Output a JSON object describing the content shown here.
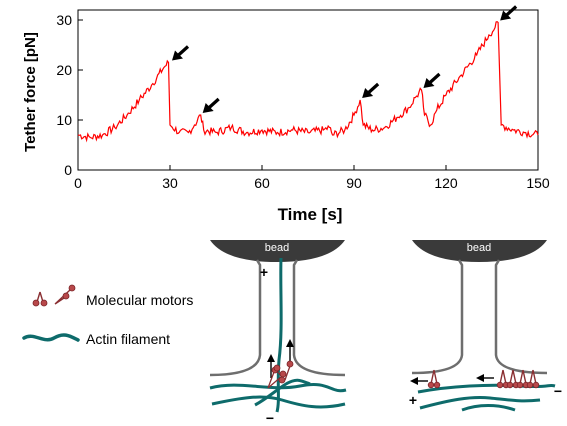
{
  "chart_data": {
    "type": "line",
    "title": "",
    "xlabel": "Time [s]",
    "ylabel": "Tether force [pN]",
    "xlim": [
      0,
      150
    ],
    "ylim": [
      0,
      32
    ],
    "xticks": [
      0,
      30,
      60,
      90,
      120,
      150
    ],
    "yticks": [
      0,
      10,
      20,
      30
    ],
    "x_tick_labels": [
      "0",
      "30",
      "60",
      "90",
      "120",
      "150"
    ],
    "y_tick_labels": [
      "0",
      "10",
      "20",
      "30"
    ],
    "grid": false,
    "line_color": "#ff0000",
    "series": [
      {
        "name": "",
        "points": [
          [
            0,
            7
          ],
          [
            4,
            6.5
          ],
          [
            8,
            7
          ],
          [
            12,
            8.5
          ],
          [
            16,
            11
          ],
          [
            20,
            14
          ],
          [
            24,
            17
          ],
          [
            28,
            20.5
          ],
          [
            29.5,
            21.5
          ],
          [
            30,
            9
          ],
          [
            33,
            7.5
          ],
          [
            36,
            7.5
          ],
          [
            38,
            9
          ],
          [
            40,
            11
          ],
          [
            41,
            8
          ],
          [
            45,
            7.5
          ],
          [
            50,
            8.5
          ],
          [
            55,
            7.5
          ],
          [
            60,
            8
          ],
          [
            65,
            7.5
          ],
          [
            70,
            8
          ],
          [
            75,
            7.5
          ],
          [
            80,
            8
          ],
          [
            82,
            8.5
          ],
          [
            83,
            7
          ],
          [
            87,
            8
          ],
          [
            90,
            11
          ],
          [
            92,
            14
          ],
          [
            93,
            9
          ],
          [
            96,
            8
          ],
          [
            100,
            8.5
          ],
          [
            104,
            10.5
          ],
          [
            108,
            12.5
          ],
          [
            110,
            14.5
          ],
          [
            112,
            16
          ],
          [
            113,
            11
          ],
          [
            115,
            9
          ],
          [
            117,
            12
          ],
          [
            120,
            15
          ],
          [
            125,
            19
          ],
          [
            130,
            23
          ],
          [
            134,
            27
          ],
          [
            136,
            28.5
          ],
          [
            137,
            29.5
          ],
          [
            138,
            9
          ],
          [
            142,
            8
          ],
          [
            146,
            7.5
          ],
          [
            150,
            7
          ]
        ]
      }
    ],
    "annotations": [
      {
        "type": "arrow",
        "x": 30,
        "y": 21.5
      },
      {
        "type": "arrow",
        "x": 40,
        "y": 11
      },
      {
        "type": "arrow",
        "x": 92,
        "y": 14
      },
      {
        "type": "arrow",
        "x": 112,
        "y": 16
      },
      {
        "type": "arrow",
        "x": 137,
        "y": 29.5
      }
    ]
  },
  "legend": {
    "motors_label": "Molecular motors",
    "actin_label": "Actin filament"
  },
  "schematic": {
    "bead_label": "bead",
    "plus_sign": "+",
    "minus_sign": "−",
    "motor_color": "#b8484a",
    "actin_color": "#0e6b6b",
    "tether_color": "#6e6e6e",
    "bead_color": "#3a3a3a"
  }
}
